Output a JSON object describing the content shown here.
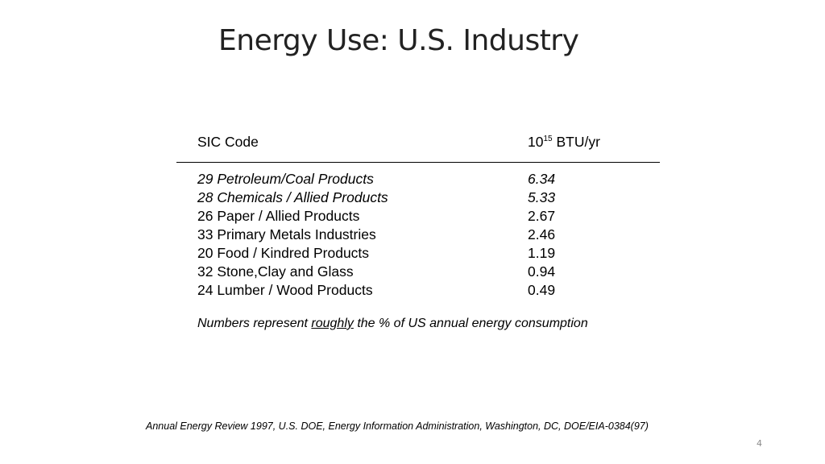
{
  "slide": {
    "title": "Energy Use:  U.S. Industry",
    "page_number": "4"
  },
  "table": {
    "header": {
      "code_label": "SIC Code",
      "value_base": "10",
      "value_exponent": "15",
      "value_unit": " BTU/yr"
    },
    "rows": [
      {
        "label": "29 Petroleum/Coal Products",
        "value": "6.34",
        "italic": true
      },
      {
        "label": "28 Chemicals / Allied Products",
        "value": "5.33",
        "italic": true
      },
      {
        "label": "26 Paper / Allied Products",
        "value": "2.67",
        "italic": false
      },
      {
        "label": "33 Primary Metals Industries",
        "value": "2.46",
        "italic": false
      },
      {
        "label": "20 Food / Kindred Products",
        "value": "1.19",
        "italic": false
      },
      {
        "label": "32 Stone,Clay and Glass",
        "value": "0.94",
        "italic": false
      },
      {
        "label": "24 Lumber / Wood Products",
        "value": "0.49",
        "italic": false
      }
    ]
  },
  "note": {
    "before": "Numbers represent ",
    "emphasis": "roughly",
    "after": " the % of US annual energy consumption"
  },
  "source": "Annual Energy Review 1997, U.S. DOE, Energy Information Administration, Washington, DC, DOE/EIA-0384(97)"
}
